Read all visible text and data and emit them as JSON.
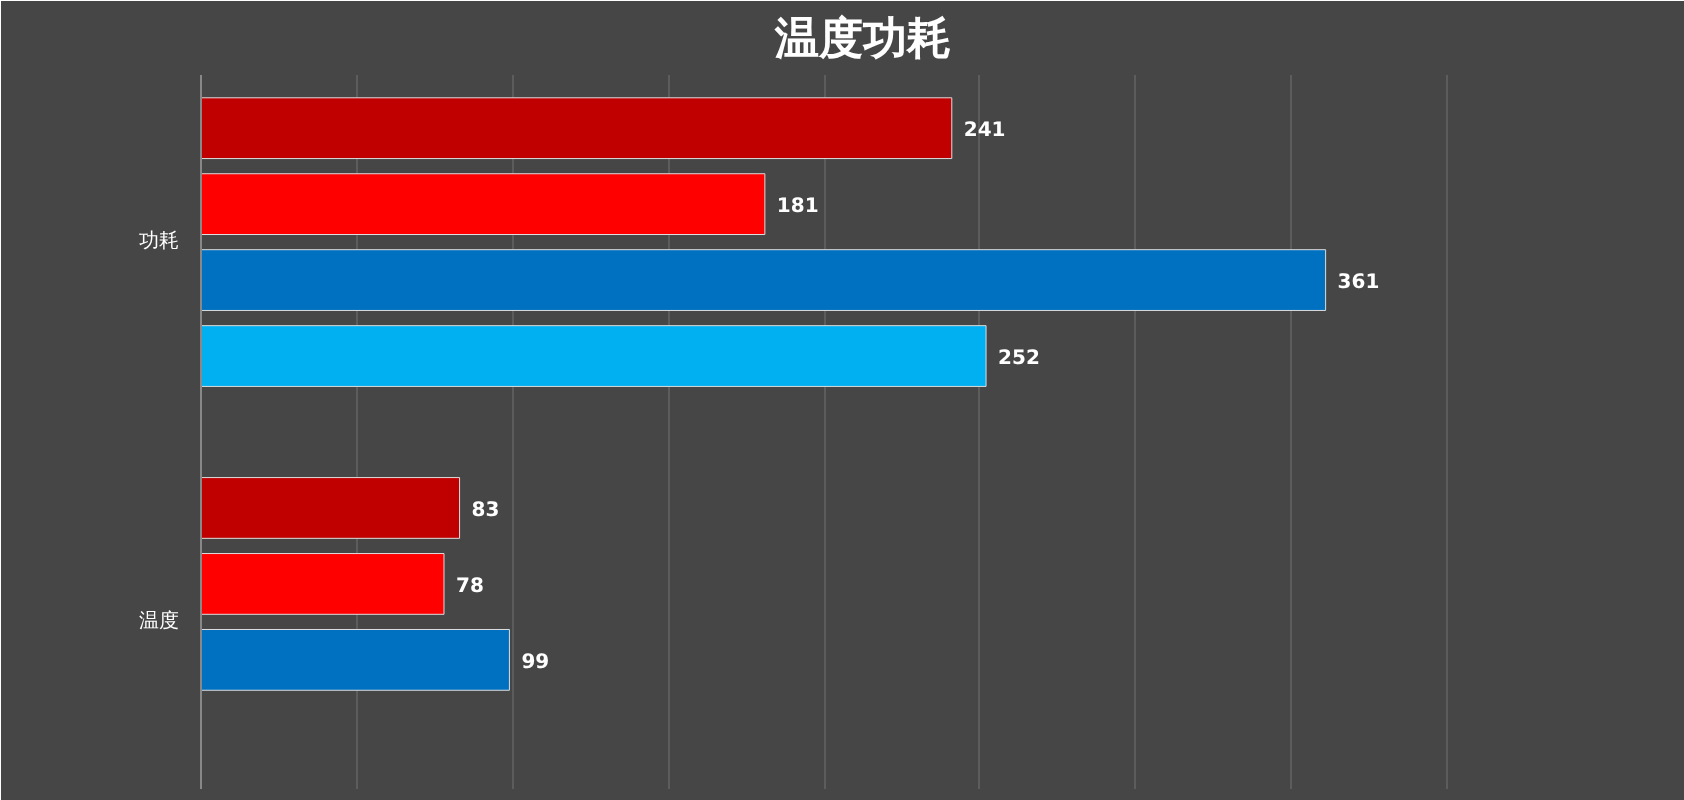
{
  "chart_data": {
    "type": "bar",
    "orientation": "horizontal",
    "title": "温度功耗",
    "categories": [
      "功耗",
      "温度"
    ],
    "series": [
      {
        "color": "#c00000",
        "values": [
          241,
          83
        ]
      },
      {
        "color": "#ff0000",
        "values": [
          181,
          78
        ]
      },
      {
        "color": "#0070c0",
        "values": [
          361,
          99
        ]
      },
      {
        "color": "#00b0f0",
        "values": [
          252,
          null
        ]
      }
    ],
    "xlim": [
      0,
      425
    ],
    "xticks": [
      {
        "value": 0,
        "label": null
      },
      {
        "value": 50,
        "label": null
      },
      {
        "value": 100,
        "label": null
      },
      {
        "value": 150,
        "label": null
      },
      {
        "value": 200,
        "label": null
      },
      {
        "value": 250,
        "label": null
      },
      {
        "value": 300,
        "label": null
      },
      {
        "value": 350,
        "label": null
      },
      {
        "value": 400,
        "label": null
      }
    ],
    "tick_labels": "y",
    "grid": "x",
    "data_labels": true
  }
}
